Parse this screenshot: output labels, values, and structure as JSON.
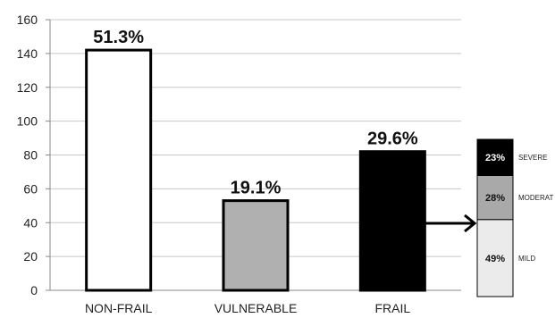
{
  "chart_data": {
    "type": "bar",
    "categories": [
      "NON-FRAIL",
      "VULNERABLE",
      "FRAIL"
    ],
    "values": [
      142,
      53,
      82
    ],
    "data_labels": [
      "51.3%",
      "19.1%",
      "29.6%"
    ],
    "fills": [
      "#ffffff",
      "#b0b0b0",
      "#000000"
    ],
    "ylim": [
      0,
      160
    ],
    "yticks": [
      "0",
      "20",
      "40",
      "60",
      "80",
      "100",
      "120",
      "140",
      "160"
    ],
    "grid": true,
    "breakdown": {
      "of_category": "FRAIL",
      "type": "stacked_bar",
      "segments": [
        {
          "label": "MILD",
          "value_label": "49%",
          "value": 49,
          "fill": "#ebebeb",
          "text_color": "#111111"
        },
        {
          "label": "MODERAT",
          "value_label": "28%",
          "value": 28,
          "fill": "#a9a9a9",
          "text_color": "#111111"
        },
        {
          "label": "SEVERE",
          "value_label": "23%",
          "value": 23,
          "fill": "#000000",
          "text_color": "#ffffff"
        }
      ]
    }
  }
}
